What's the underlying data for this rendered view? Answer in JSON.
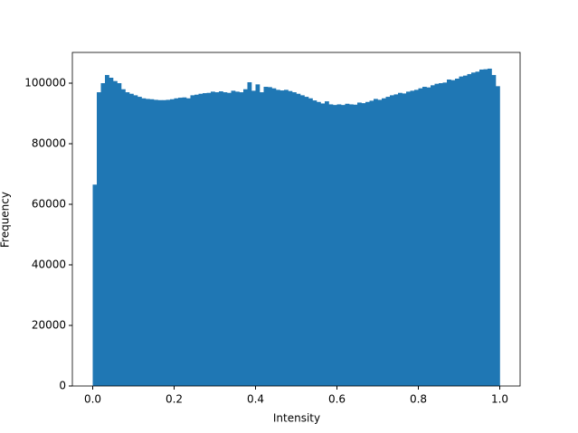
{
  "chart_data": {
    "type": "histogram",
    "x_label": "Intensity",
    "y_label": "Frequency",
    "color": "#1f77b4",
    "bins": [
      0,
      0.01,
      0.02,
      0.03,
      0.04,
      0.05,
      0.06,
      0.07,
      0.08,
      0.09,
      0.1,
      0.11,
      0.12,
      0.13,
      0.14,
      0.15,
      0.16,
      0.17,
      0.18,
      0.19,
      0.2,
      0.21,
      0.22,
      0.23,
      0.24,
      0.25,
      0.26,
      0.27,
      0.28,
      0.29,
      0.3,
      0.31,
      0.32,
      0.33,
      0.34,
      0.35,
      0.36,
      0.37,
      0.38,
      0.39,
      0.4,
      0.41,
      0.42,
      0.43,
      0.44,
      0.45,
      0.46,
      0.47,
      0.48,
      0.49,
      0.5,
      0.51,
      0.52,
      0.53,
      0.54,
      0.55,
      0.56,
      0.57,
      0.58,
      0.59,
      0.6,
      0.61,
      0.62,
      0.63,
      0.64,
      0.65,
      0.66,
      0.67,
      0.68,
      0.69,
      0.7,
      0.71,
      0.72,
      0.73,
      0.74,
      0.75,
      0.76,
      0.77,
      0.78,
      0.79,
      0.8,
      0.81,
      0.82,
      0.83,
      0.84,
      0.85,
      0.86,
      0.87,
      0.88,
      0.89,
      0.9,
      0.91,
      0.92,
      0.93,
      0.94,
      0.95,
      0.96,
      0.97,
      0.98,
      0.99,
      1
    ],
    "counts": [
      66500,
      97000,
      100000,
      102700,
      101800,
      100700,
      100000,
      98000,
      97000,
      96500,
      96000,
      95500,
      95000,
      94800,
      94700,
      94500,
      94400,
      94400,
      94500,
      94700,
      95000,
      95200,
      95300,
      95000,
      96000,
      96200,
      96500,
      96700,
      96800,
      97200,
      97000,
      97300,
      97000,
      96800,
      97500,
      97200,
      97000,
      98000,
      100300,
      97500,
      99600,
      97000,
      98800,
      98700,
      98300,
      97800,
      97600,
      97800,
      97400,
      97000,
      96500,
      96000,
      95500,
      95000,
      94300,
      93800,
      93300,
      94000,
      93000,
      92800,
      93000,
      92800,
      93200,
      93000,
      92900,
      93600,
      93400,
      93800,
      94200,
      94800,
      94500,
      95000,
      95500,
      96000,
      96300,
      96800,
      96600,
      97200,
      97500,
      97800,
      98300,
      98800,
      98600,
      99300,
      99800,
      100000,
      100200,
      101200,
      101000,
      101500,
      102200,
      102500,
      103000,
      103500,
      103800,
      104500,
      104600,
      104800,
      102700,
      99000
    ],
    "xlim": [
      -0.05,
      1.05
    ],
    "xticks": [
      {
        "value": 0,
        "label": "0.0"
      },
      0.2,
      0.4,
      0.6,
      0.8,
      {
        "value": 1,
        "label": "1.0"
      }
    ],
    "ylim": [
      0,
      110150
    ],
    "yticks": [
      0,
      20000,
      40000,
      60000,
      80000,
      100000
    ]
  }
}
